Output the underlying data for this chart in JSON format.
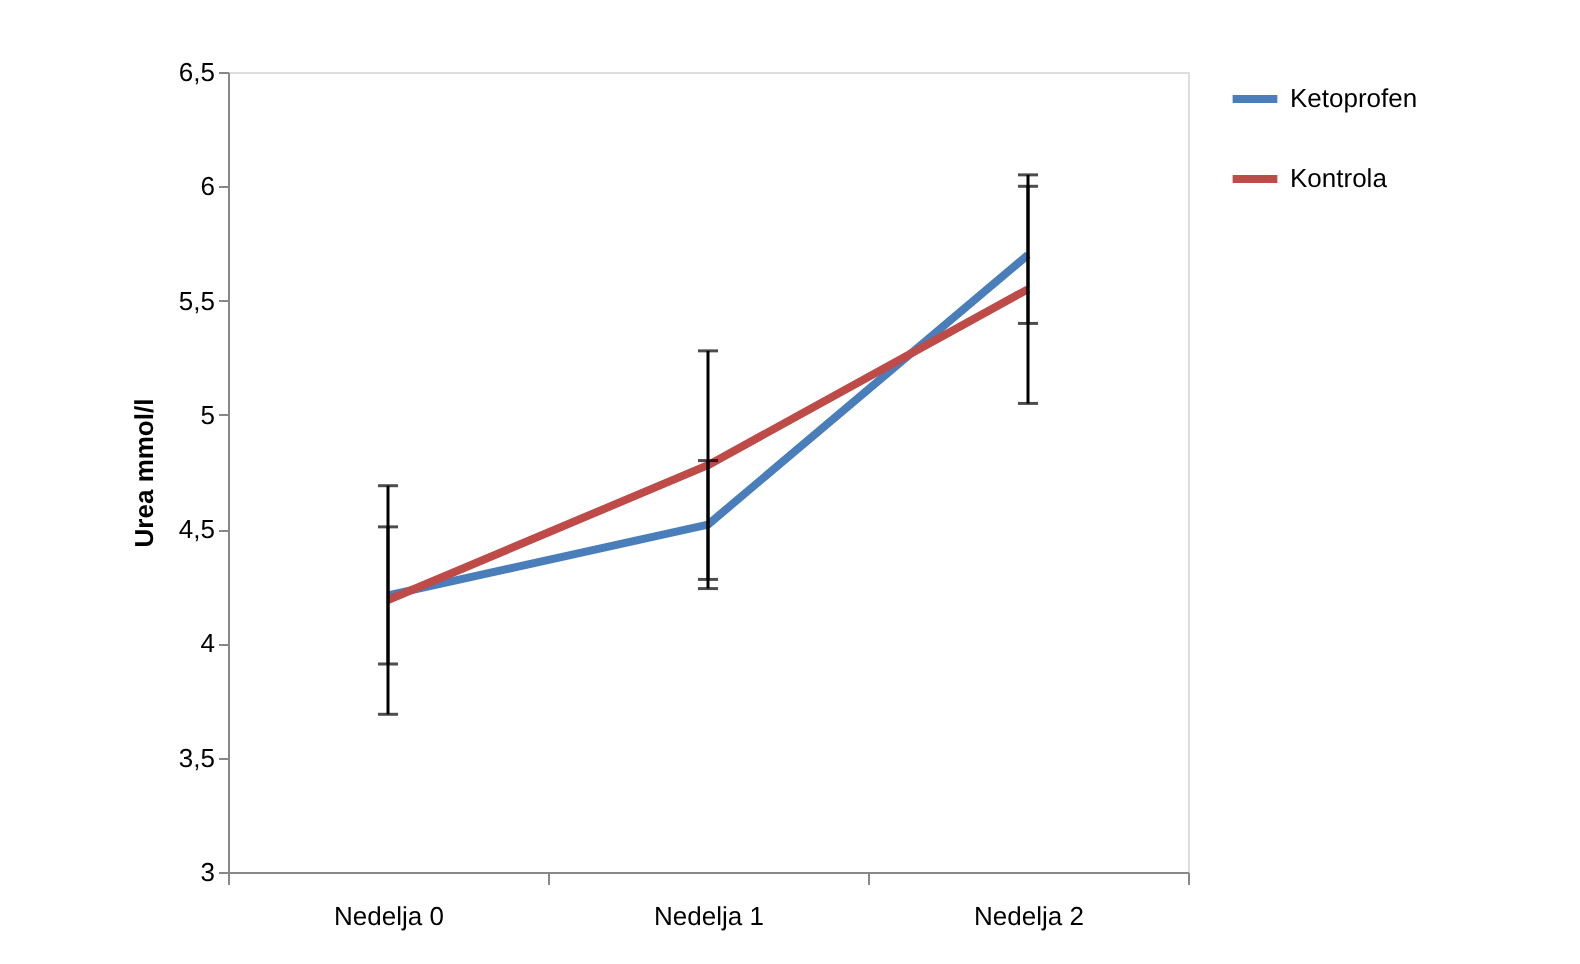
{
  "chart_data": {
    "type": "line",
    "ylabel": "Urea mmol/l",
    "categories": [
      "Nedelja 0",
      "Nedelja 1",
      "Nedelja 2"
    ],
    "series": [
      {
        "name": "Ketoprofen",
        "color": "#4a7ebb",
        "values": [
          4.21,
          4.52,
          5.7
        ],
        "errors": [
          0.3,
          0.28,
          0.3
        ]
      },
      {
        "name": "Kontrola",
        "color": "#be4b48",
        "values": [
          4.19,
          4.78,
          5.55
        ],
        "errors": [
          0.5,
          0.5,
          0.5
        ]
      }
    ],
    "ylim": [
      3,
      6.5
    ],
    "yticks": [
      3,
      {
        "value": 3.5,
        "label": "3,5"
      },
      4,
      {
        "value": 4.5,
        "label": "4,5"
      },
      5,
      {
        "value": 5.5,
        "label": "5,5"
      },
      6,
      {
        "value": 6.5,
        "label": "6,5"
      }
    ],
    "legend": "right",
    "grid": false,
    "marker": "none",
    "line_style": "solid"
  }
}
